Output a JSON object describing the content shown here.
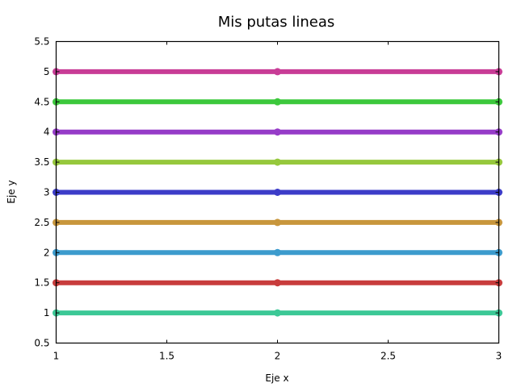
{
  "chart_data": {
    "type": "line",
    "title": "Mis putas lineas",
    "xlabel": "Eje x",
    "ylabel": "Eje y",
    "xlim": [
      1,
      3
    ],
    "ylim": [
      0.5,
      5.5
    ],
    "x_ticks": [
      "1",
      "1.5",
      "2",
      "2.5",
      "3"
    ],
    "y_ticks": [
      "0.5",
      "1",
      "1.5",
      "2",
      "2.5",
      "3",
      "3.5",
      "4",
      "4.5",
      "5",
      "5.5"
    ],
    "grid": false,
    "x": [
      1,
      2,
      3
    ],
    "series": [
      {
        "values": [
          1.0,
          1.0,
          1.0
        ],
        "color": "#3cc896"
      },
      {
        "values": [
          1.5,
          1.5,
          1.5
        ],
        "color": "#c83c3c"
      },
      {
        "values": [
          2.0,
          2.0,
          2.0
        ],
        "color": "#3c9bcd"
      },
      {
        "values": [
          2.5,
          2.5,
          2.5
        ],
        "color": "#c8963c"
      },
      {
        "values": [
          3.0,
          3.0,
          3.0
        ],
        "color": "#3c3cc8"
      },
      {
        "values": [
          3.5,
          3.5,
          3.5
        ],
        "color": "#96c83c"
      },
      {
        "values": [
          4.0,
          4.0,
          4.0
        ],
        "color": "#963cc8"
      },
      {
        "values": [
          4.5,
          4.5,
          4.5
        ],
        "color": "#3cc83c"
      },
      {
        "values": [
          5.0,
          5.0,
          5.0
        ],
        "color": "#c83c96"
      }
    ]
  }
}
